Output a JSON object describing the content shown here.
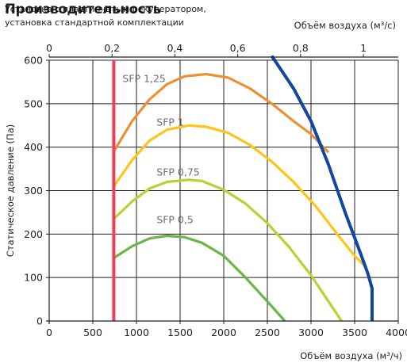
{
  "header": {
    "title": "Производительность",
    "subtitle_line1": "Установка с пластинчатым рекуператором,",
    "subtitle_line2": "установка стандартной комплектации"
  },
  "colors": {
    "axis": "#231f20",
    "tick_text": "#231f20",
    "series_label": "#6d6e71",
    "min_flow": "#ed3f58",
    "max_limit": "#1147a0",
    "sfp_1_25": "#ee8f34",
    "sfp_1": "#fdc515",
    "sfp_0_75": "#b8d234",
    "sfp_0_5": "#6cb547"
  },
  "chart_data": {
    "type": "line",
    "title": "Производительность",
    "xlabel": "Объём воздуха (м³/ч)",
    "x2label": "Объём воздуха (м³/с)",
    "ylabel": "Статическое давление (Па)",
    "xlim": [
      0,
      4000
    ],
    "ylim": [
      0,
      600
    ],
    "x2lim": [
      0,
      1.111
    ],
    "xticks": [
      0,
      500,
      1000,
      1500,
      2000,
      2500,
      3000,
      3500,
      4000
    ],
    "yticks": [
      0,
      100,
      200,
      300,
      400,
      500,
      600
    ],
    "x2ticks": [
      0,
      0.2,
      0.4,
      0.6,
      0.8,
      1
    ],
    "x2ticklabels": [
      "0",
      "0,2",
      "0,4",
      "0,6",
      "0,8",
      "1"
    ],
    "grid": true,
    "series": [
      {
        "name": "SFP 1,25",
        "color_key": "sfp_1_25",
        "label_at": [
          840,
          550
        ],
        "points": [
          [
            740,
            390
          ],
          [
            950,
            460
          ],
          [
            1150,
            510
          ],
          [
            1350,
            545
          ],
          [
            1550,
            563
          ],
          [
            1800,
            568
          ],
          [
            2050,
            560
          ],
          [
            2300,
            535
          ],
          [
            2550,
            500
          ],
          [
            2800,
            460
          ],
          [
            3000,
            430
          ],
          [
            3200,
            388
          ]
        ]
      },
      {
        "name": "SFP 1",
        "color_key": "sfp_1",
        "label_at": [
          1230,
          450
        ],
        "points": [
          [
            740,
            310
          ],
          [
            950,
            370
          ],
          [
            1150,
            415
          ],
          [
            1350,
            440
          ],
          [
            1600,
            450
          ],
          [
            1800,
            447
          ],
          [
            2050,
            433
          ],
          [
            2300,
            405
          ],
          [
            2550,
            367
          ],
          [
            2800,
            320
          ],
          [
            3050,
            265
          ],
          [
            3300,
            200
          ],
          [
            3500,
            150
          ],
          [
            3600,
            130
          ]
        ]
      },
      {
        "name": "SFP 0,75",
        "color_key": "sfp_0_75",
        "label_at": [
          1230,
          335
        ],
        "points": [
          [
            740,
            235
          ],
          [
            950,
            275
          ],
          [
            1150,
            305
          ],
          [
            1350,
            320
          ],
          [
            1600,
            325
          ],
          [
            1750,
            322
          ],
          [
            2000,
            302
          ],
          [
            2250,
            270
          ],
          [
            2500,
            225
          ],
          [
            2750,
            170
          ],
          [
            3000,
            105
          ],
          [
            3200,
            45
          ],
          [
            3350,
            0
          ]
        ]
      },
      {
        "name": "SFP 0,5",
        "color_key": "sfp_0_5",
        "label_at": [
          1230,
          225
        ],
        "points": [
          [
            740,
            145
          ],
          [
            950,
            172
          ],
          [
            1150,
            190
          ],
          [
            1350,
            196
          ],
          [
            1550,
            193
          ],
          [
            1750,
            180
          ],
          [
            2000,
            150
          ],
          [
            2250,
            100
          ],
          [
            2500,
            45
          ],
          [
            2700,
            0
          ]
        ]
      },
      {
        "name": "",
        "color_key": "max_limit",
        "points": [
          [
            2550,
            610
          ],
          [
            2800,
            535
          ],
          [
            3000,
            460
          ],
          [
            3200,
            360
          ],
          [
            3400,
            245
          ],
          [
            3550,
            165
          ],
          [
            3650,
            110
          ],
          [
            3700,
            75
          ],
          [
            3700,
            0
          ]
        ]
      },
      {
        "name": "",
        "color_key": "min_flow",
        "points": [
          [
            740,
            600
          ],
          [
            740,
            0
          ]
        ]
      }
    ]
  }
}
